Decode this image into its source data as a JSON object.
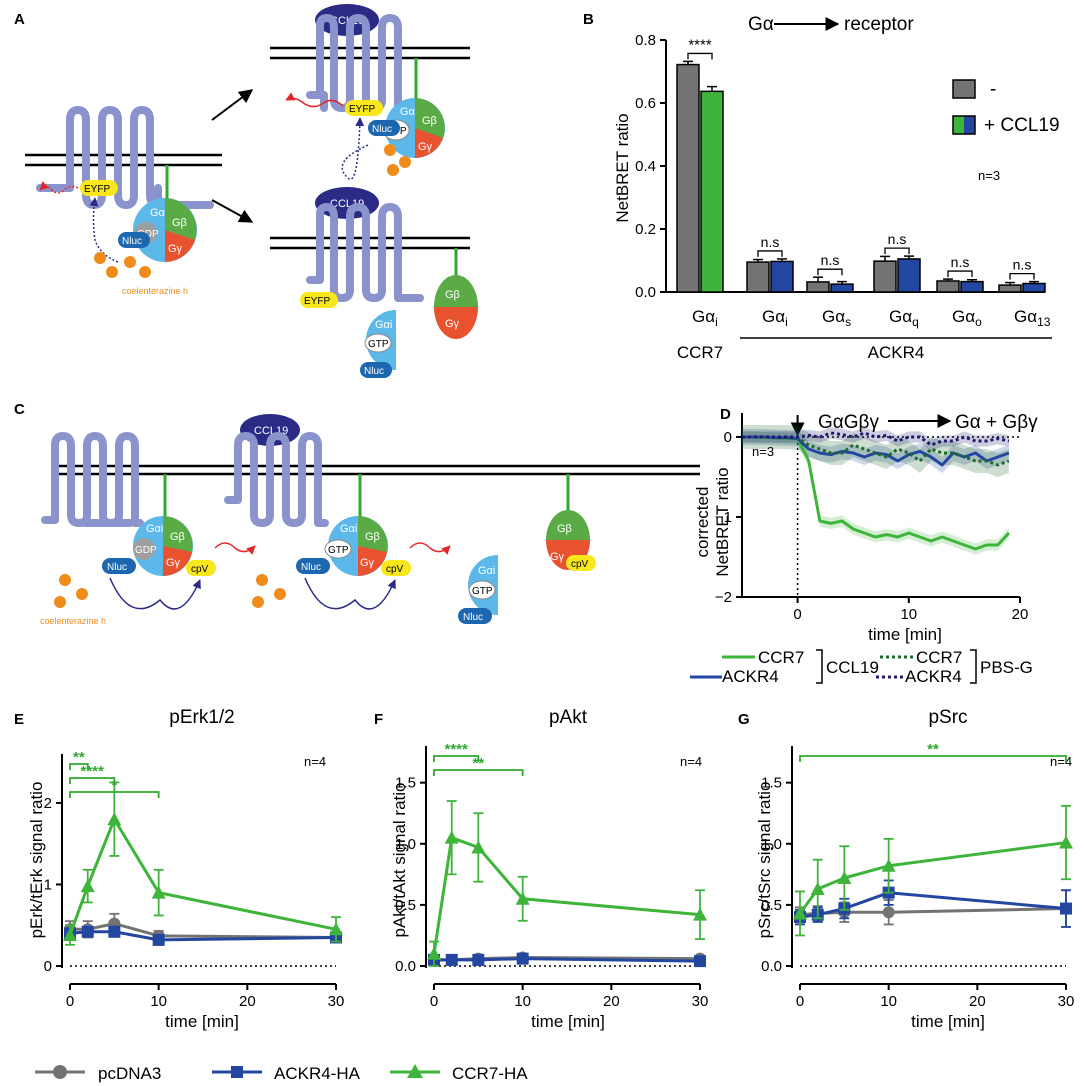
{
  "colors": {
    "grey": "#737373",
    "green": "#3fb43a",
    "blue": "#2347a0",
    "darkgreen": "#1c6b2a",
    "navy": "#1e1b6e",
    "sig": "#2faa2f",
    "receptor": "#8b93cc",
    "galpha": "#5bb8e8",
    "gbeta": "#5aab45",
    "ggamma": "#e8522f",
    "nluc": "#1d66b0",
    "eyfp": "#f8e71c",
    "ligand": "#2b2b86",
    "substrate": "#f08c1c"
  },
  "panels": {
    "A": {
      "label": "A",
      "ligand": "CCL19",
      "eyfp": "EYFP",
      "nluc": "Nluc",
      "galpha": "Gα",
      "gbeta": "Gβ",
      "ggamma": "Gγ",
      "gdp": "GDP",
      "gtp": "GTP",
      "galpha_i": "Gαi",
      "substrate": "coelenterazine h"
    },
    "C": {
      "label": "C",
      "ligand": "CCL19",
      "nluc": "Nluc",
      "galpha_i": "Gαi",
      "gbeta": "Gβ",
      "ggamma": "Gγ",
      "gdp": "GDP",
      "gtp": "GTP",
      "cpv": "cpV",
      "substrate": "coelenterazine h"
    }
  },
  "chart_data": [
    {
      "id": "B",
      "label": "B",
      "type": "bar",
      "title": "Gα",
      "title_suffix": "receptor",
      "ylabel": "NetBRET ratio",
      "ylim": [
        0,
        0.8
      ],
      "yticks": [
        "0.0",
        "0.2",
        "0.4",
        "0.6",
        "0.8"
      ],
      "categories": [
        "Gαi",
        "Gαi",
        "Gαs",
        "Gαq",
        "Gαo",
        "Gα13"
      ],
      "category_base": "Gα",
      "category_sub": [
        "i",
        "i",
        "s",
        "q",
        "o",
        "13"
      ],
      "groups": [
        {
          "label": "CCR7",
          "from": 0,
          "to": 0
        },
        {
          "label": "ACKR4",
          "from": 1,
          "to": 5
        }
      ],
      "series": [
        {
          "name": "-",
          "values": [
            0.722,
            0.095,
            0.032,
            0.098,
            0.035,
            0.022
          ],
          "errors": [
            0.01,
            0.008,
            0.015,
            0.015,
            0.006,
            0.008
          ]
        },
        {
          "name": "+ CCL19",
          "values": [
            0.637,
            0.097,
            0.025,
            0.105,
            0.033,
            0.027
          ],
          "errors": [
            0.015,
            0.008,
            0.008,
            0.009,
            0.006,
            0.006
          ]
        }
      ],
      "annotations": [
        "****",
        "n.s",
        "n.s",
        "n.s",
        "n.s",
        "n.s"
      ],
      "n_label": "n=3"
    },
    {
      "id": "D",
      "label": "D",
      "type": "line",
      "title_left": "GαGβγ",
      "title_right": "Gα + Gβγ",
      "ylabel_line1": "corrected",
      "ylabel_line2": "NetBRET ratio",
      "xlabel": "time [min]",
      "xlim": [
        -5,
        20
      ],
      "ylim": [
        -2,
        0.3
      ],
      "xticks": [
        0,
        10,
        20
      ],
      "yticks": [
        0,
        -1,
        -2
      ],
      "n_label": "n=3",
      "x": [
        -5,
        -4,
        -3,
        -2,
        -1,
        0,
        1,
        2,
        3,
        4,
        5,
        6,
        7,
        8,
        9,
        10,
        11,
        12,
        13,
        14,
        15,
        16,
        17,
        18,
        19
      ],
      "series": [
        {
          "name": "CCR7",
          "treatment": "CCL19",
          "style": "solid",
          "color": "green",
          "band": 0.07,
          "values": [
            0,
            0,
            -0.01,
            -0.01,
            -0.02,
            -0.02,
            -0.3,
            -1.05,
            -1.08,
            -1.05,
            -1.15,
            -1.2,
            -1.25,
            -1.22,
            -1.25,
            -1.2,
            -1.25,
            -1.3,
            -1.25,
            -1.3,
            -1.35,
            -1.4,
            -1.35,
            -1.35,
            -1.2
          ]
        },
        {
          "name": "ACKR4",
          "treatment": "CCL19",
          "style": "solid",
          "color": "blue",
          "band": 0.1,
          "values": [
            0,
            0,
            0,
            -0.01,
            -0.01,
            -0.02,
            -0.15,
            -0.2,
            -0.22,
            -0.18,
            -0.2,
            -0.25,
            -0.2,
            -0.22,
            -0.3,
            -0.22,
            -0.18,
            -0.25,
            -0.35,
            -0.2,
            -0.25,
            -0.2,
            -0.3,
            -0.25,
            -0.2
          ]
        },
        {
          "name": "CCR7",
          "treatment": "PBS-G",
          "style": "dotted",
          "color": "darkgreen",
          "band": 0.15,
          "values": [
            0,
            0,
            0,
            0,
            0,
            -0.01,
            -0.1,
            -0.15,
            -0.2,
            -0.2,
            -0.1,
            -0.15,
            -0.2,
            -0.25,
            -0.15,
            -0.2,
            -0.3,
            -0.15,
            -0.2,
            -0.2,
            -0.25,
            -0.3,
            -0.3,
            -0.35,
            -0.3
          ]
        },
        {
          "name": "ACKR4",
          "treatment": "PBS-G",
          "style": "dotted",
          "color": "navy",
          "band": 0.07,
          "values": [
            0,
            0,
            0,
            0,
            0,
            0,
            0.02,
            0.0,
            0.05,
            0.03,
            0.0,
            0.05,
            0.0,
            0.02,
            -0.05,
            0.0,
            0.0,
            -0.1,
            -0.05,
            -0.05,
            0.0,
            -0.05,
            -0.05,
            -0.02,
            -0.05
          ]
        }
      ],
      "legend": {
        "ccl19": "CCL19",
        "pbs": "PBS-G",
        "ccr7": "CCR7",
        "ackr4": "ACKR4"
      }
    },
    {
      "id": "E",
      "label": "E",
      "type": "line",
      "title": "pErk1/2",
      "ylabel": "pErk/tErk signal ratio",
      "xlabel": "time [min]",
      "xlim": [
        0,
        30
      ],
      "ylim": [
        0,
        2.6
      ],
      "xticks": [
        0,
        10,
        20,
        30
      ],
      "yticks": [
        0,
        1,
        2
      ],
      "n_label": "n=4",
      "x": [
        0,
        2,
        5,
        10,
        30
      ],
      "series": [
        {
          "name": "pcDNA3",
          "values": [
            0.45,
            0.45,
            0.52,
            0.37,
            0.35
          ],
          "errors": [
            0.1,
            0.1,
            0.12,
            0.06,
            0.05
          ]
        },
        {
          "name": "ACKR4-HA",
          "values": [
            0.4,
            0.42,
            0.42,
            0.32,
            0.35
          ],
          "errors": [
            0.05,
            0.05,
            0.06,
            0.05,
            0.05
          ]
        },
        {
          "name": "CCR7-HA",
          "values": [
            0.38,
            0.98,
            1.8,
            0.9,
            0.45
          ],
          "errors": [
            0.12,
            0.2,
            0.45,
            0.28,
            0.15
          ]
        }
      ],
      "significance": [
        {
          "to": 2,
          "label": "**"
        },
        {
          "to": 5,
          "label": "****"
        },
        {
          "to": 10,
          "label": "*"
        }
      ]
    },
    {
      "id": "F",
      "label": "F",
      "type": "line",
      "title": "pAkt",
      "ylabel": "pAkt/tAkt signal ratio",
      "xlabel": "time [min]",
      "xlim": [
        0,
        30
      ],
      "ylim": [
        0,
        1.8
      ],
      "xticks": [
        0,
        10,
        20,
        30
      ],
      "yticks": [
        "0.0",
        "0.5",
        "1.0",
        "1.5"
      ],
      "n_label": "n=4",
      "x": [
        0,
        2,
        5,
        10,
        30
      ],
      "series": [
        {
          "name": "pcDNA3",
          "values": [
            0.05,
            0.05,
            0.06,
            0.07,
            0.06
          ],
          "errors": [
            0.02,
            0.02,
            0.02,
            0.02,
            0.02
          ]
        },
        {
          "name": "ACKR4-HA",
          "values": [
            0.05,
            0.05,
            0.05,
            0.06,
            0.04
          ],
          "errors": [
            0.02,
            0.02,
            0.02,
            0.02,
            0.02
          ]
        },
        {
          "name": "CCR7-HA",
          "values": [
            0.1,
            1.05,
            0.97,
            0.55,
            0.42
          ],
          "errors": [
            0.1,
            0.3,
            0.28,
            0.18,
            0.2
          ]
        }
      ],
      "significance": [
        {
          "to": 5,
          "label": "****"
        },
        {
          "to": 10,
          "label": "**"
        }
      ]
    },
    {
      "id": "G",
      "label": "G",
      "type": "line",
      "title": "pSrc",
      "ylabel": "pSrc/tSrc signal ratio",
      "xlabel": "time [min]",
      "xlim": [
        0,
        30
      ],
      "ylim": [
        0,
        1.8
      ],
      "xticks": [
        0,
        10,
        20,
        30
      ],
      "yticks": [
        "0.0",
        "0.5",
        "1.0",
        "1.5"
      ],
      "n_label": "n=4",
      "x": [
        0,
        2,
        5,
        10,
        30
      ],
      "series": [
        {
          "name": "pcDNA3",
          "values": [
            0.42,
            0.43,
            0.44,
            0.44,
            0.47
          ],
          "errors": [
            0.06,
            0.06,
            0.08,
            0.1,
            0.15
          ]
        },
        {
          "name": "ACKR4-HA",
          "values": [
            0.4,
            0.42,
            0.47,
            0.6,
            0.47
          ],
          "errors": [
            0.06,
            0.06,
            0.08,
            0.1,
            0.15
          ]
        },
        {
          "name": "CCR7-HA",
          "values": [
            0.43,
            0.63,
            0.72,
            0.82,
            1.01
          ],
          "errors": [
            0.18,
            0.24,
            0.26,
            0.22,
            0.3
          ]
        }
      ],
      "significance": [
        {
          "to": 30,
          "label": "**"
        }
      ]
    }
  ],
  "bottom_legend": [
    {
      "name": "pcDNA3",
      "marker": "circle",
      "color": "grey"
    },
    {
      "name": "ACKR4-HA",
      "marker": "square",
      "color": "blue"
    },
    {
      "name": "CCR7-HA",
      "marker": "triangle",
      "color": "green"
    }
  ]
}
